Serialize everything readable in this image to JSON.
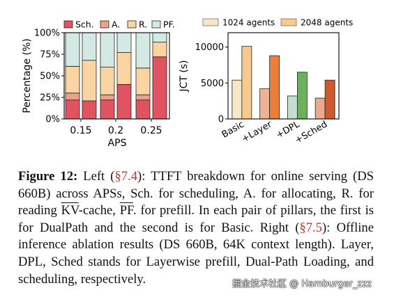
{
  "chart_data": [
    {
      "type": "bar",
      "stacked": true,
      "categories": [
        "0.15",
        "0.2",
        "0.25"
      ],
      "xlabel": "APS",
      "ylabel": "Percentage (%)",
      "ylim": [
        0,
        100
      ],
      "yticks": [
        "0%",
        "25%",
        "50%",
        "75%",
        "100%"
      ],
      "legend": [
        "Sch.",
        "A.",
        "R.",
        "PF."
      ],
      "legend_position": "top",
      "colors": {
        "Sch.": "#e05361",
        "A.": "#e8a48a",
        "R.": "#fbd5a1",
        "PF.": "#d3e9e4"
      },
      "pillars": [
        {
          "category": "0.15",
          "variant": "DualPath",
          "Sch.": 22,
          "A.": 8,
          "R.": 31,
          "PF.": 39
        },
        {
          "category": "0.15",
          "variant": "Basic",
          "Sch.": 21,
          "A.": 0,
          "R.": 47,
          "PF.": 32
        },
        {
          "category": "0.2",
          "variant": "DualPath",
          "Sch.": 22,
          "A.": 6,
          "R.": 32,
          "PF.": 40
        },
        {
          "category": "0.2",
          "variant": "Basic",
          "Sch.": 40,
          "A.": 0,
          "R.": 37,
          "PF.": 23
        },
        {
          "category": "0.25",
          "variant": "DualPath",
          "Sch.": 22,
          "A.": 6,
          "R.": 31,
          "PF.": 41
        },
        {
          "category": "0.25",
          "variant": "Basic",
          "Sch.": 72,
          "A.": 0,
          "R.": 17,
          "PF.": 11
        }
      ]
    },
    {
      "type": "bar",
      "categories": [
        "Basic",
        "+Layer",
        "+DPL",
        "+Sched"
      ],
      "ylabel": "JCT (s)",
      "ylim": [
        0,
        12000
      ],
      "yticks": [
        "0",
        "5000",
        "10000"
      ],
      "legend_position": "top",
      "series": [
        {
          "name": "1024 agents",
          "values": [
            5400,
            4200,
            3200,
            2900
          ],
          "colors": [
            "#f5e6c6",
            "#f0b293",
            "#bfe0cf",
            "#e9a98e"
          ]
        },
        {
          "name": "2048 agents",
          "values": [
            10100,
            8800,
            6500,
            5400
          ],
          "colors": [
            "#f8c98f",
            "#ef7d3a",
            "#6bb15a",
            "#cf5a2d"
          ]
        }
      ],
      "legend_swatch_colors": [
        "#f5e6c6",
        "#f8c98f"
      ]
    }
  ],
  "caption": {
    "label": "Figure 12:",
    "p1": " Left (",
    "ref1": "§7.4",
    "p2": "): TTFT breakdown for online serving (DS 660B) across APSs, Sch. for scheduling, A. for allocating, R. for reading ",
    "kv": "KV",
    "p3": "-cache, ",
    "pf": "PF",
    "p4": ". for prefill. In each pair of pillars, the first is for DualPath and the second is for Basic. Right (",
    "ref2": "§7.5",
    "p5": "): Offline inference ablation results (DS 660B, 64K context length). Layer, DPL, Sched stands for Layerwise prefill, Dual-Path Loading, and scheduling, respectively."
  },
  "watermark": "掘金技术社区 @ Hamburger_zzz"
}
